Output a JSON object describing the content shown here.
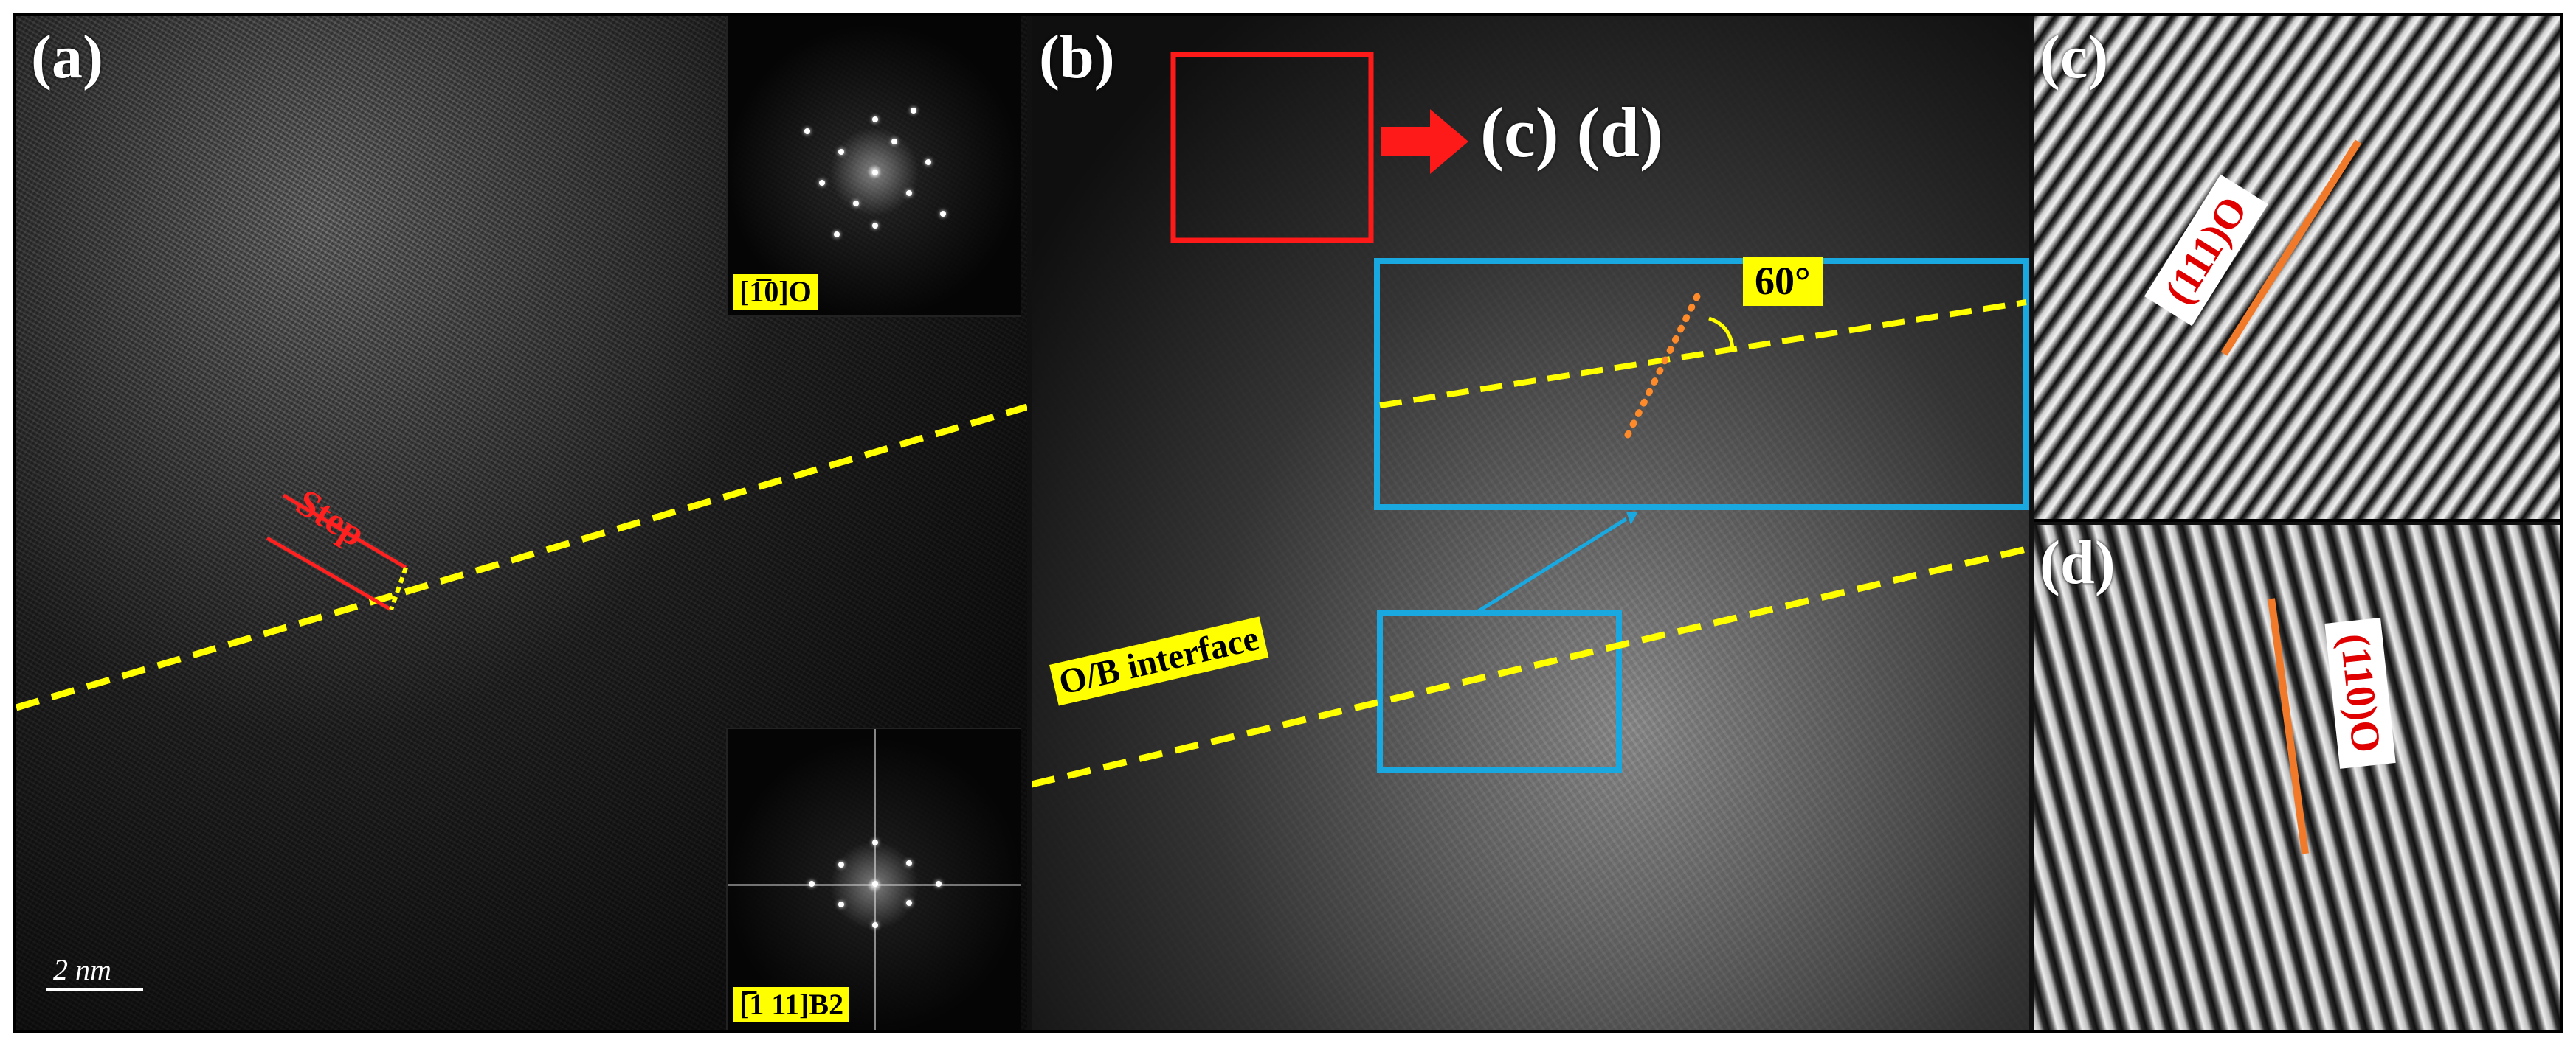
{
  "panels": {
    "a": {
      "label": "(a)",
      "inset_top_label": "[1̅0]O",
      "inset_bottom_label": "[̅1 11]B2",
      "step_label": "Step",
      "scale_label": "2 nm"
    },
    "b": {
      "label": "(b)",
      "arrow_target_label": "(c) (d)",
      "angle_label": "60°",
      "interface_label": "O/B interface"
    },
    "c": {
      "label": "(c)",
      "plane_label": "(111)O"
    },
    "d": {
      "label": "(d)",
      "plane_label": "(110)O"
    }
  },
  "colors": {
    "interface_line": "#ffff00",
    "step_marker": "#ff2020",
    "red_box": "#ff1a1a",
    "blue_box": "#19a9e0",
    "plane_line": "#f07a2a",
    "dotted_line": "#ff8a2a"
  }
}
